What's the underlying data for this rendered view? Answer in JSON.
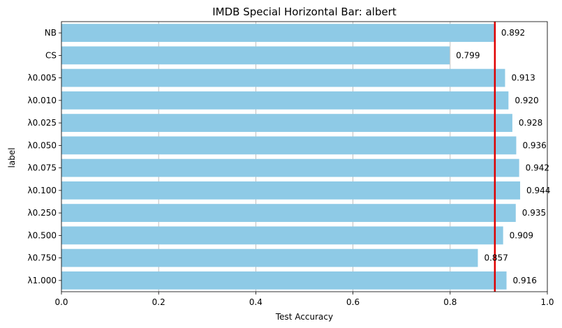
{
  "chart_data": {
    "type": "bar",
    "orientation": "horizontal",
    "title": "IMDB Special Horizontal Bar: albert",
    "xlabel": "Test Accuracy",
    "ylabel": "label",
    "xlim": [
      0,
      1.0
    ],
    "xticks": [
      "0.0",
      "0.2",
      "0.4",
      "0.6",
      "0.8",
      "1.0"
    ],
    "grid": "vertical",
    "categories": [
      "NB",
      "CS",
      "λ0.005",
      "λ0.010",
      "λ0.025",
      "λ0.050",
      "λ0.075",
      "λ0.100",
      "λ0.250",
      "λ0.500",
      "λ0.750",
      "λ1.000"
    ],
    "values": [
      0.892,
      0.799,
      0.913,
      0.92,
      0.928,
      0.936,
      0.942,
      0.944,
      0.935,
      0.909,
      0.857,
      0.916
    ],
    "value_labels": [
      "0.892",
      "0.799",
      "0.913",
      "0.920",
      "0.928",
      "0.936",
      "0.942",
      "0.944",
      "0.935",
      "0.909",
      "0.857",
      "0.916"
    ],
    "reference_line": {
      "x": 0.892,
      "color": "#e00000"
    },
    "bar_color": "#8ecae6"
  }
}
